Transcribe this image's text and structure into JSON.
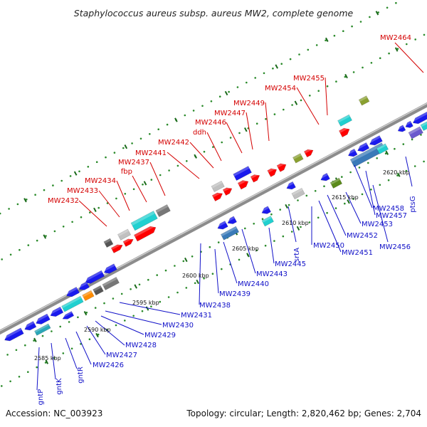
{
  "header": {
    "title": "Staphylococcus aureus subsp. aureus MW2, complete genome"
  },
  "footer": {
    "accession": "Accession: NC_003923",
    "summary": "Topology: circular; Length: 2,820,462 bp; Genes: 2,704"
  },
  "colors": {
    "forward_label": "#d40000",
    "reverse_label": "#1010c8",
    "forward_gene": "#ff0000",
    "reverse_gene": "#1a1aee",
    "backbone": "#8c8c8c"
  },
  "scale": {
    "labels": [
      "2585 kbp",
      "2590 kbp",
      "2595 kbp",
      "2600 kbp",
      "2605 kbp",
      "2610 kbp",
      "2615 kbp",
      "2620 kbp"
    ]
  },
  "genes_top": [
    "MW2432",
    "MW2433",
    "MW2434",
    "fbp",
    "MW2437",
    "MW2441",
    "MW2442",
    "ddh",
    "MW2446",
    "MW2447",
    "MW2449",
    "MW2454",
    "MW2455",
    "MW2464"
  ],
  "genes_bottom": [
    "gntP",
    "gntK",
    "gntR",
    "MW2426",
    "MW2427",
    "MW2428",
    "MW2429",
    "MW2430",
    "MW2431",
    "MW2438",
    "MW2439",
    "MW2440",
    "MW2443",
    "MW2445",
    "srtA",
    "MW2450",
    "MW2451",
    "MW2452",
    "MW2453",
    "MW2456",
    "MW2457",
    "MW2458",
    "ptsG"
  ]
}
